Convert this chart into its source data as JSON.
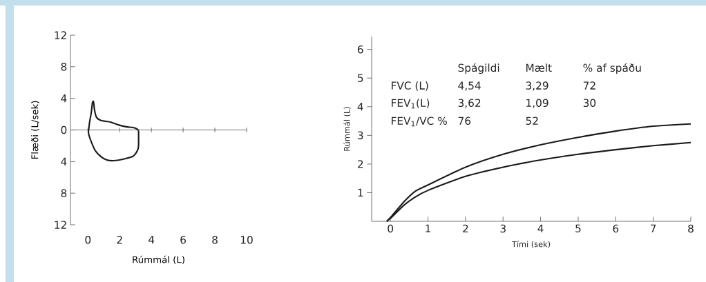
{
  "chart_data": [
    {
      "type": "line",
      "xlabel": "Rúmmál (L)",
      "ylabel": "Flæði (L/sek)",
      "xlim": [
        -1.1,
        10
      ],
      "ylim": [
        -12,
        12
      ],
      "xticks": [
        0,
        2,
        4,
        6,
        8,
        10
      ],
      "yticks": [
        {
          "value": -12,
          "label": "12"
        },
        {
          "value": -8,
          "label": "8"
        },
        {
          "value": -4,
          "label": "4"
        },
        0,
        4,
        8,
        12
      ],
      "series": [
        {
          "color": "#1a1a1a",
          "x": [
            0.03,
            0.1,
            0.22,
            0.28,
            0.35,
            0.42,
            0.54,
            0.83,
            1.41,
            1.99,
            2.42,
            2.86,
            3.12,
            3.19
          ],
          "values": [
            -0.3,
            0.9,
            2.3,
            3.4,
            3.6,
            2.5,
            1.6,
            1.2,
            1.0,
            0.6,
            0.4,
            0.3,
            0.1,
            -0.1
          ]
        },
        {
          "color": "#1a1a1a",
          "x": [
            0.03,
            0.07,
            0.25,
            0.46,
            0.83,
            1.19,
            1.55,
            1.99,
            2.42,
            2.86,
            3.12,
            3.19,
            3.19
          ],
          "values": [
            -0.3,
            -0.7,
            -1.7,
            -2.6,
            -3.4,
            -3.8,
            -3.9,
            -3.8,
            -3.6,
            -3.3,
            -2.6,
            -2.0,
            -0.1
          ]
        }
      ]
    },
    {
      "type": "line",
      "xlabel": "Tími (sek)",
      "ylabel": "Rúmmál (L)",
      "xlim": [
        -0.5,
        8
      ],
      "ylim": [
        0,
        6.45
      ],
      "xticks": [
        0,
        1,
        2,
        3,
        4,
        5,
        6,
        7,
        8
      ],
      "yticks": [
        1,
        2,
        3,
        4,
        5,
        6
      ],
      "annotations": [
        "Spágildi",
        "Mælt",
        "% af spáðu",
        "FVC (L)",
        "4,54",
        "3,29",
        "72",
        "FEV$_{1}$(L)",
        "3,62",
        "1,09",
        "30",
        "FEV$_{1}$/VC %",
        "76",
        "52"
      ],
      "series": [
        {
          "color": "#1a1a1a",
          "x": [
            -0.1,
            0.04,
            0.35,
            0.65,
            1,
            2,
            3,
            4,
            5,
            6,
            7,
            8
          ],
          "values": [
            0,
            0.19,
            0.67,
            1.04,
            1.27,
            1.89,
            2.34,
            2.67,
            2.93,
            3.15,
            3.32,
            3.4
          ]
        },
        {
          "color": "#1a1a1a",
          "x": [
            -0.1,
            0.04,
            0.35,
            0.65,
            1,
            2,
            3,
            4,
            5,
            6,
            7,
            8
          ],
          "values": [
            0,
            0.15,
            0.55,
            0.84,
            1.08,
            1.57,
            1.89,
            2.14,
            2.34,
            2.5,
            2.64,
            2.75
          ]
        }
      ]
    }
  ]
}
